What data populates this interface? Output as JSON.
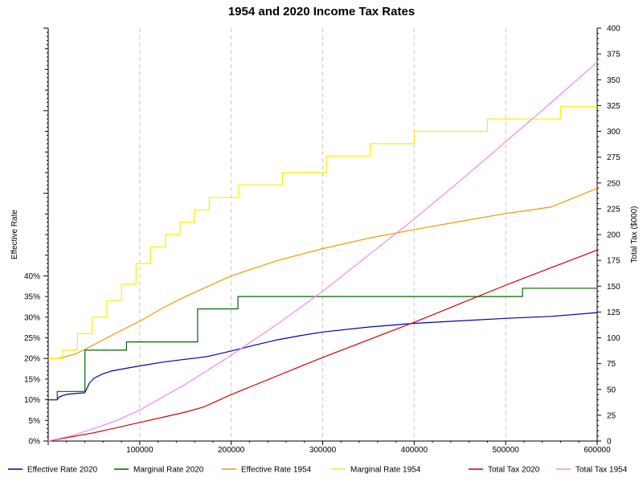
{
  "chart_data": {
    "type": "line",
    "title": "1954 and 2020 Income Tax Rates",
    "xlabel": "",
    "ylabel_left": "Effective Rate",
    "ylabel_right": "Total Tax ($000)",
    "xlim": [
      0,
      600000
    ],
    "ylim_left": [
      0,
      1
    ],
    "ylim_right": [
      0,
      400
    ],
    "x_ticks": [
      100000,
      200000,
      300000,
      400000,
      500000,
      600000
    ],
    "x_tick_labels": [
      "100000",
      "200000",
      "300000",
      "400000",
      "500000",
      "600000"
    ],
    "left_ticks": [
      0,
      0.05,
      0.1,
      0.15,
      0.2,
      0.25,
      0.3,
      0.35,
      0.4
    ],
    "left_tick_labels": [
      "0%",
      "5%",
      "10%",
      "15%",
      "20%",
      "25%",
      "30%",
      "35%",
      "40%"
    ],
    "right_ticks": [
      0,
      25,
      50,
      75,
      100,
      125,
      150,
      175,
      200,
      225,
      250,
      275,
      300,
      325,
      350,
      375,
      400
    ],
    "right_tick_labels": [
      "0",
      "25",
      "50",
      "75",
      "100",
      "125",
      "150",
      "175",
      "200",
      "225",
      "250",
      "275",
      "300",
      "325",
      "350",
      "375",
      "400"
    ],
    "grid": "vertical-dashed",
    "legend_position": "bottom",
    "series": [
      {
        "name": "Effective Rate 2020",
        "axis": "left",
        "color": "#0000aa",
        "step": false,
        "points": [
          [
            0,
            0.1
          ],
          [
            10000,
            0.1
          ],
          [
            12000,
            0.107
          ],
          [
            20000,
            0.113
          ],
          [
            30000,
            0.115
          ],
          [
            40000,
            0.117
          ],
          [
            45000,
            0.14
          ],
          [
            50000,
            0.152
          ],
          [
            60000,
            0.163
          ],
          [
            70000,
            0.17
          ],
          [
            85000,
            0.176
          ],
          [
            100000,
            0.182
          ],
          [
            125000,
            0.191
          ],
          [
            150000,
            0.198
          ],
          [
            165000,
            0.202
          ],
          [
            175000,
            0.205
          ],
          [
            200000,
            0.218
          ],
          [
            225000,
            0.232
          ],
          [
            250000,
            0.245
          ],
          [
            275000,
            0.255
          ],
          [
            300000,
            0.264
          ],
          [
            350000,
            0.276
          ],
          [
            400000,
            0.285
          ],
          [
            450000,
            0.291
          ],
          [
            500000,
            0.297
          ],
          [
            550000,
            0.302
          ],
          [
            600000,
            0.311
          ]
        ]
      },
      {
        "name": "Marginal Rate 2020",
        "axis": "left",
        "color": "#006600",
        "step": true,
        "points": [
          [
            0,
            0.1
          ],
          [
            9875,
            0.1
          ],
          [
            9875,
            0.12
          ],
          [
            40125,
            0.12
          ],
          [
            40125,
            0.22
          ],
          [
            85525,
            0.22
          ],
          [
            85525,
            0.24
          ],
          [
            163300,
            0.24
          ],
          [
            163300,
            0.32
          ],
          [
            207350,
            0.32
          ],
          [
            207350,
            0.35
          ],
          [
            518400,
            0.35
          ],
          [
            518400,
            0.37
          ],
          [
            600000,
            0.37
          ]
        ]
      },
      {
        "name": "Effective Rate 1954",
        "axis": "left",
        "color": "#ee9900",
        "step": false,
        "points": [
          [
            0,
            0.2
          ],
          [
            10000,
            0.2
          ],
          [
            20000,
            0.205
          ],
          [
            30000,
            0.211
          ],
          [
            40000,
            0.222
          ],
          [
            60000,
            0.245
          ],
          [
            80000,
            0.268
          ],
          [
            100000,
            0.29
          ],
          [
            125000,
            0.322
          ],
          [
            150000,
            0.35
          ],
          [
            175000,
            0.375
          ],
          [
            200000,
            0.4
          ],
          [
            250000,
            0.437
          ],
          [
            300000,
            0.466
          ],
          [
            350000,
            0.491
          ],
          [
            400000,
            0.512
          ],
          [
            450000,
            0.532
          ],
          [
            500000,
            0.551
          ],
          [
            550000,
            0.567
          ],
          [
            600000,
            0.612
          ]
        ]
      },
      {
        "name": "Marginal Rate 1954",
        "axis": "left",
        "color": "#ffee00",
        "step": true,
        "points": [
          [
            0,
            0.2
          ],
          [
            16000,
            0.2
          ],
          [
            16000,
            0.22
          ],
          [
            32000,
            0.22
          ],
          [
            32000,
            0.26
          ],
          [
            48000,
            0.26
          ],
          [
            48000,
            0.3
          ],
          [
            64000,
            0.3
          ],
          [
            64000,
            0.34
          ],
          [
            80000,
            0.34
          ],
          [
            80000,
            0.38
          ],
          [
            96000,
            0.38
          ],
          [
            96000,
            0.43
          ],
          [
            112000,
            0.43
          ],
          [
            112000,
            0.47
          ],
          [
            128000,
            0.47
          ],
          [
            128000,
            0.5
          ],
          [
            144000,
            0.5
          ],
          [
            144000,
            0.53
          ],
          [
            160000,
            0.53
          ],
          [
            160000,
            0.56
          ],
          [
            176000,
            0.56
          ],
          [
            176000,
            0.59
          ],
          [
            208000,
            0.59
          ],
          [
            208000,
            0.62
          ],
          [
            256000,
            0.62
          ],
          [
            256000,
            0.65
          ],
          [
            304000,
            0.65
          ],
          [
            304000,
            0.69
          ],
          [
            352000,
            0.69
          ],
          [
            352000,
            0.72
          ],
          [
            400000,
            0.72
          ],
          [
            400000,
            0.75
          ],
          [
            480000,
            0.75
          ],
          [
            480000,
            0.78
          ],
          [
            560000,
            0.78
          ],
          [
            560000,
            0.81
          ],
          [
            600000,
            0.81
          ]
        ]
      },
      {
        "name": "Total Tax 2020",
        "axis": "right",
        "color": "#cc0000",
        "step": false,
        "points": [
          [
            0,
            0
          ],
          [
            50000,
            8
          ],
          [
            100000,
            18
          ],
          [
            150000,
            28
          ],
          [
            170000,
            33
          ],
          [
            200000,
            45
          ],
          [
            250000,
            63
          ],
          [
            300000,
            81
          ],
          [
            350000,
            98
          ],
          [
            400000,
            115
          ],
          [
            450000,
            133
          ],
          [
            500000,
            151
          ],
          [
            550000,
            168
          ],
          [
            600000,
            185
          ]
        ]
      },
      {
        "name": "Total Tax 1954",
        "axis": "right",
        "color": "#ee88ee",
        "step": false,
        "points": [
          [
            0,
            0
          ],
          [
            25000,
            5
          ],
          [
            50000,
            12
          ],
          [
            75000,
            20
          ],
          [
            100000,
            30
          ],
          [
            150000,
            55
          ],
          [
            200000,
            83
          ],
          [
            250000,
            113
          ],
          [
            300000,
            145
          ],
          [
            350000,
            180
          ],
          [
            400000,
            215
          ],
          [
            450000,
            252
          ],
          [
            500000,
            290
          ],
          [
            550000,
            328
          ],
          [
            600000,
            367
          ]
        ]
      }
    ]
  }
}
